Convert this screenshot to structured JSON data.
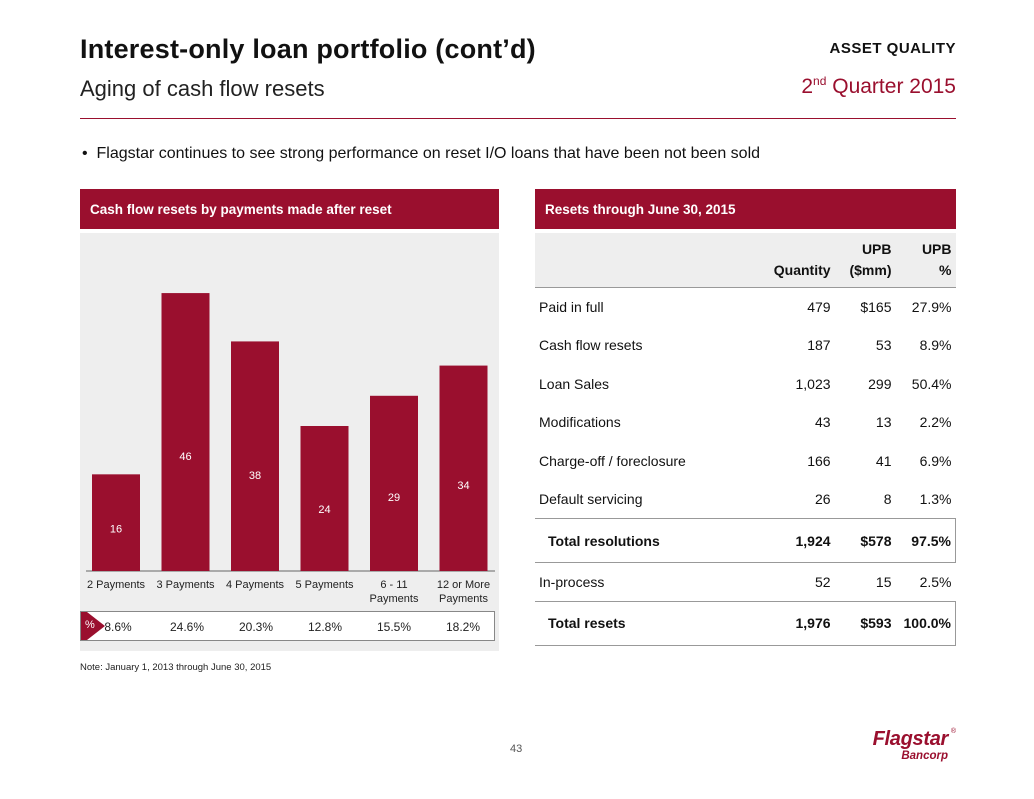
{
  "header": {
    "title": "Interest-only loan portfolio (cont’d)",
    "subtitle": "Aging of cash flow resets",
    "section": "ASSET QUALITY",
    "quarter_num": "2",
    "quarter_sup": "nd",
    "quarter_rest": " Quarter 2015"
  },
  "bullet": "Flagstar continues to see strong performance on reset I/O loans that have been not been sold",
  "left_panel": {
    "heading": "Cash flow resets by payments made after reset",
    "pct_symbol": "%",
    "percents": [
      "8.6%",
      "24.6%",
      "20.3%",
      "12.8%",
      "15.5%",
      "18.2%"
    ],
    "note": "Note: January 1, 2013 through June 30, 2015"
  },
  "chart_data": {
    "type": "bar",
    "categories": [
      [
        "2 Payments"
      ],
      [
        "3 Payments"
      ],
      [
        "4 Payments"
      ],
      [
        "5 Payments"
      ],
      [
        "6 - 11",
        "Payments"
      ],
      [
        "12 or More",
        "Payments"
      ]
    ],
    "values": [
      16,
      46,
      38,
      24,
      29,
      34
    ],
    "title": "Cash flow resets by payments made after reset",
    "xlabel": "",
    "ylabel": "",
    "ylim": [
      0,
      48
    ],
    "color": "#9a0f2e",
    "grid": false
  },
  "right_panel": {
    "heading": "Resets through June 30, 2015",
    "columns": [
      "",
      "Quantity",
      "UPB\n($mm)",
      "UPB\n%"
    ],
    "rows": [
      {
        "label": "Paid in full",
        "qty": "479",
        "upb": "$165",
        "pct": "27.9%"
      },
      {
        "label": "Cash flow resets",
        "qty": "187",
        "upb": "53",
        "pct": "8.9%"
      },
      {
        "label": "Loan Sales",
        "qty": "1,023",
        "upb": "299",
        "pct": "50.4%"
      },
      {
        "label": "Modifications",
        "qty": "43",
        "upb": "13",
        "pct": "2.2%"
      },
      {
        "label": "Charge-off / foreclosure",
        "qty": "166",
        "upb": "41",
        "pct": "6.9%"
      },
      {
        "label": "Default servicing",
        "qty": "26",
        "upb": "8",
        "pct": "1.3%"
      }
    ],
    "total_resolutions": {
      "label": "Total resolutions",
      "qty": "1,924",
      "upb": "$578",
      "pct": "97.5%"
    },
    "in_process": {
      "label": "In-process",
      "qty": "52",
      "upb": "15",
      "pct": "2.5%"
    },
    "total_resets": {
      "label": "Total resets",
      "qty": "1,976",
      "upb": "$593",
      "pct": "100.0%"
    }
  },
  "footer": {
    "page_number": "43",
    "logo_main": "Flagstar",
    "logo_sub": "Bancorp",
    "logo_reg": "®"
  },
  "colors": {
    "accent": "#9a0f2e",
    "panel_bg": "#eeeeee"
  }
}
